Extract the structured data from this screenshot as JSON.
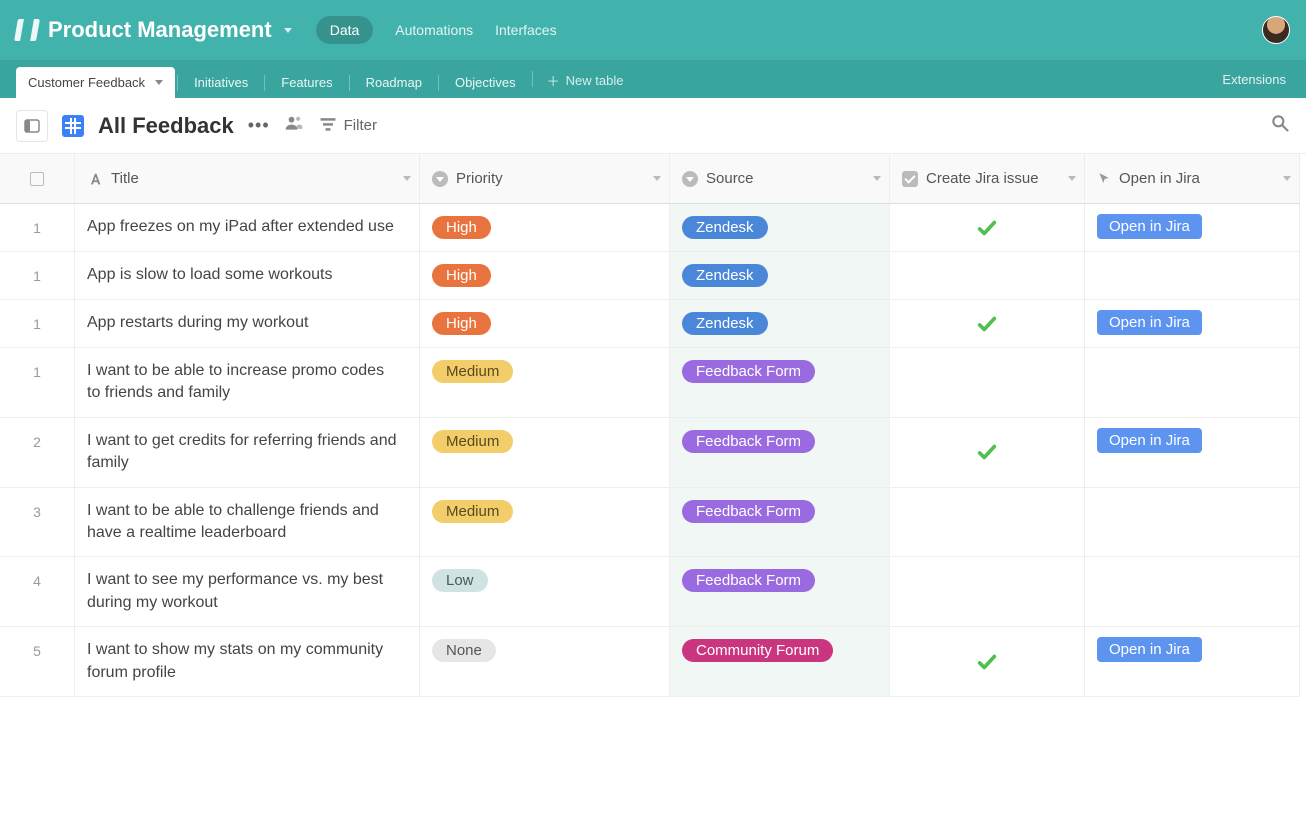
{
  "topbar": {
    "base_name": "Product Management",
    "links": {
      "data": "Data",
      "automations": "Automations",
      "interfaces": "Interfaces"
    }
  },
  "tabs": {
    "active": "Customer Feedback",
    "others": [
      "Initiatives",
      "Features",
      "Roadmap",
      "Objectives"
    ],
    "new_table": "New table",
    "extensions": "Extensions"
  },
  "view": {
    "title": "All Feedback",
    "filter_label": "Filter"
  },
  "columns": {
    "title": "Title",
    "priority": "Priority",
    "source": "Source",
    "create_jira": "Create Jira issue",
    "open_jira": "Open in Jira"
  },
  "badges": {
    "priority": {
      "High": {
        "label": "High",
        "bg": "#e8733e"
      },
      "Medium": {
        "label": "Medium",
        "bg": "#f2cd6a",
        "fg": "#5a4a1f"
      },
      "Low": {
        "label": "Low",
        "bg": "#cfe3e3",
        "fg": "#4a5a5a"
      },
      "None": {
        "label": "None",
        "bg": "#e6e6e6",
        "fg": "#555"
      }
    },
    "source": {
      "Zendesk": {
        "label": "Zendesk",
        "bg": "#4a87d9"
      },
      "Feedback Form": {
        "label": "Feedback Form",
        "bg": "#9a6ae0"
      },
      "Community Forum": {
        "label": "Community Forum",
        "bg": "#c9357e"
      }
    },
    "open_jira_btn": {
      "label": "Open in Jira",
      "bg": "#5c94f0"
    }
  },
  "rows": [
    {
      "n": "1",
      "title": "App freezes on my iPad after extended use",
      "priority": "High",
      "source": "Zendesk",
      "jira": true,
      "open": true
    },
    {
      "n": "1",
      "title": "App is slow to load some workouts",
      "priority": "High",
      "source": "Zendesk",
      "jira": false,
      "open": false
    },
    {
      "n": "1",
      "title": "App restarts during my workout",
      "priority": "High",
      "source": "Zendesk",
      "jira": true,
      "open": true
    },
    {
      "n": "1",
      "title": "I want to be able to increase promo codes to friends and family",
      "priority": "Medium",
      "source": "Feedback Form",
      "jira": false,
      "open": false
    },
    {
      "n": "2",
      "title": "I want to get credits for referring friends and family",
      "priority": "Medium",
      "source": "Feedback Form",
      "jira": true,
      "open": true
    },
    {
      "n": "3",
      "title": "I want to be able to challenge friends and have a realtime leaderboard",
      "priority": "Medium",
      "source": "Feedback Form",
      "jira": false,
      "open": false
    },
    {
      "n": "4",
      "title": "I want to see my performance vs. my best during my workout",
      "priority": "Low",
      "source": "Feedback Form",
      "jira": false,
      "open": false
    },
    {
      "n": "5",
      "title": "I want to show my stats on my community forum profile",
      "priority": "None",
      "source": "Community Forum",
      "jira": true,
      "open": true
    }
  ]
}
